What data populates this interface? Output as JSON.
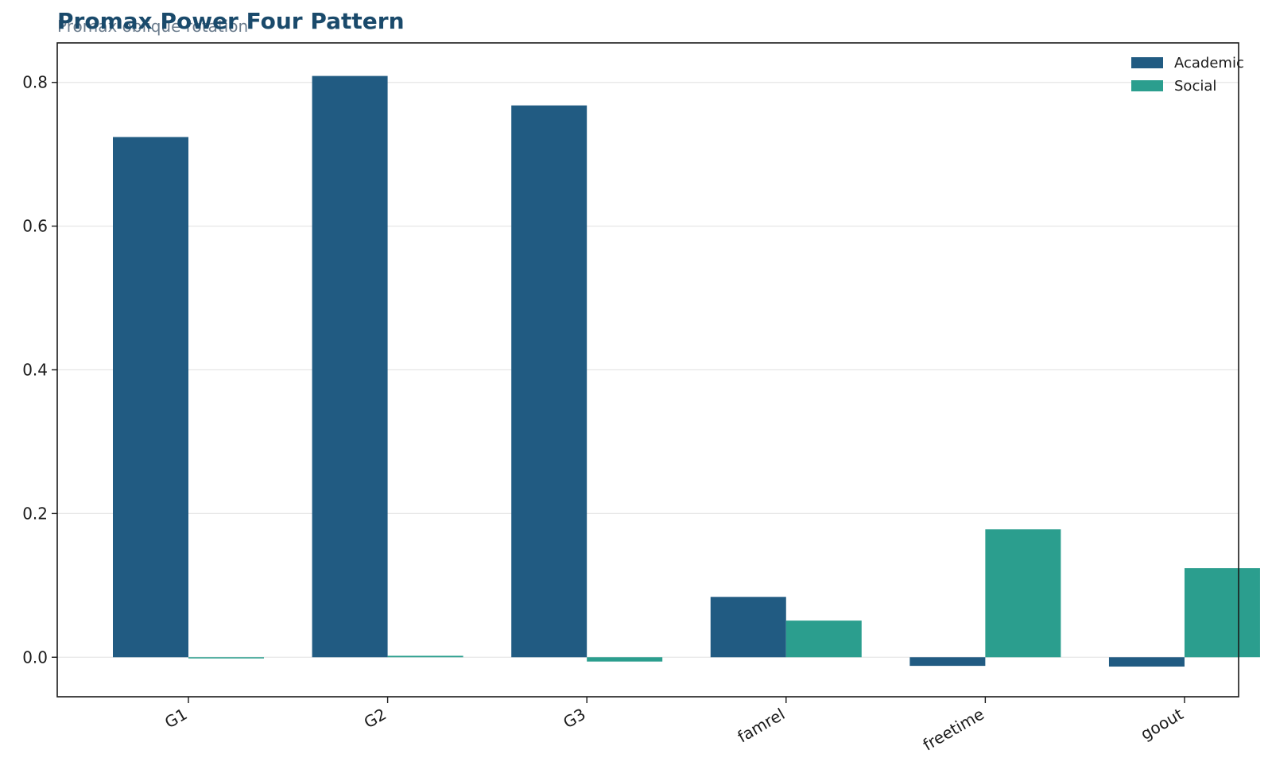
{
  "chart_data": {
    "type": "bar",
    "title": "Promax Power Four Pattern",
    "subtitle": "Promax oblique rotation",
    "categories": [
      "G1",
      "G2",
      "G3",
      "famrel",
      "freetime",
      "goout"
    ],
    "series": [
      {
        "name": "Academic",
        "color": "#215b82",
        "values": [
          0.724,
          0.809,
          0.768,
          0.084,
          -0.012,
          -0.013
        ]
      },
      {
        "name": "Social",
        "color": "#2b9e8e",
        "values": [
          -0.001,
          0.002,
          -0.006,
          0.051,
          0.178,
          0.124
        ]
      }
    ],
    "xlabel": "",
    "ylabel": "",
    "ylim": [
      -0.055,
      0.855
    ],
    "yticks": [
      "0.0",
      "0.2",
      "0.4",
      "0.6",
      "0.8"
    ],
    "grid": "horizontal",
    "legend_position": "top-right"
  }
}
